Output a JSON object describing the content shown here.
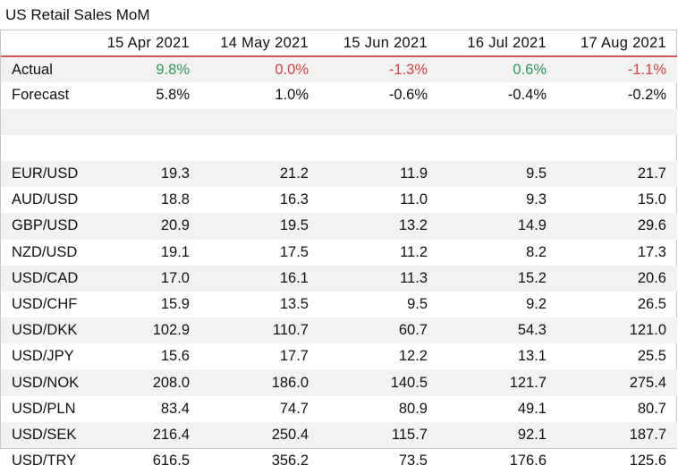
{
  "title": "US Retail Sales MoM",
  "columns": [
    "",
    "15 Apr 2021",
    "14 May 2021",
    "15 Jun 2021",
    "16 Jul 2021",
    "17 Aug 2021"
  ],
  "colors": {
    "positive": "#2e9a5a",
    "negative": "#e04040",
    "header_rule": "#d45555",
    "stripe": "#f2f2f2"
  },
  "rows": [
    {
      "label": "Actual",
      "values": [
        "9.8%",
        "0.0%",
        "-1.3%",
        "0.6%",
        "-1.1%"
      ],
      "tones": [
        "pos",
        "neg",
        "neg",
        "pos",
        "neg"
      ]
    },
    {
      "label": "Forecast",
      "values": [
        "5.8%",
        "1.0%",
        "-0.6%",
        "-0.4%",
        "-0.2%"
      ]
    },
    {
      "label": "",
      "values": [
        "",
        "",
        "",
        "",
        ""
      ]
    },
    {
      "label": "",
      "values": [
        "",
        "",
        "",
        "",
        ""
      ]
    },
    {
      "label": "EUR/USD",
      "values": [
        "19.3",
        "21.2",
        "11.9",
        "9.5",
        "21.7"
      ]
    },
    {
      "label": "AUD/USD",
      "values": [
        "18.8",
        "16.3",
        "11.0",
        "9.3",
        "15.0"
      ]
    },
    {
      "label": "GBP/USD",
      "values": [
        "20.9",
        "19.5",
        "13.2",
        "14.9",
        "29.6"
      ]
    },
    {
      "label": "NZD/USD",
      "values": [
        "19.1",
        "17.5",
        "11.2",
        "8.2",
        "17.3"
      ]
    },
    {
      "label": "USD/CAD",
      "values": [
        "17.0",
        "16.1",
        "11.3",
        "15.2",
        "20.6"
      ]
    },
    {
      "label": "USD/CHF",
      "values": [
        "15.9",
        "13.5",
        "9.5",
        "9.2",
        "26.5"
      ]
    },
    {
      "label": "USD/DKK",
      "values": [
        "102.9",
        "110.7",
        "60.7",
        "54.3",
        "121.0"
      ]
    },
    {
      "label": "USD/JPY",
      "values": [
        "15.6",
        "17.7",
        "12.2",
        "13.1",
        "25.5"
      ]
    },
    {
      "label": "USD/NOK",
      "values": [
        "208.0",
        "186.0",
        "140.5",
        "121.7",
        "275.4"
      ]
    },
    {
      "label": "USD/PLN",
      "values": [
        "83.4",
        "74.7",
        "80.9",
        "49.1",
        "80.7"
      ]
    },
    {
      "label": "USD/SEK",
      "values": [
        "216.4",
        "250.4",
        "115.7",
        "92.1",
        "187.7"
      ]
    },
    {
      "label": "USD/TRY",
      "values": [
        "616.5",
        "356.2",
        "73.5",
        "176.6",
        "125.6"
      ]
    }
  ]
}
